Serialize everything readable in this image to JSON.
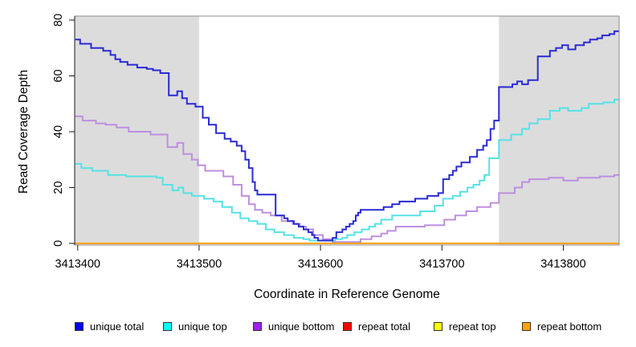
{
  "figure": {
    "xlabel": "Coordinate in Reference Genome",
    "ylabel": "Read Coverage Depth"
  },
  "chart_data": {
    "type": "line",
    "subtype": "step-after",
    "title": "",
    "xlabel": "Coordinate in Reference Genome",
    "ylabel": "Read Coverage Depth",
    "xlim": [
      3413397.5,
      3413846
    ],
    "ylim": [
      0,
      80
    ],
    "x_ticks": [
      3413400,
      3413500,
      3413600,
      3413700,
      3413800
    ],
    "y_ticks": [
      0,
      20,
      40,
      60,
      80
    ],
    "grid": false,
    "legend_position": "bottom",
    "background_color": "#FFFFFF",
    "shaded_band_color": "#DCDCDC",
    "shaded_regions": [
      {
        "x0": 3413397.5,
        "x1": 3413500
      },
      {
        "x0": 3413747,
        "x1": 3413846
      }
    ],
    "series": [
      {
        "name": "unique total",
        "color": "#2A2AD4",
        "legend_color": "#0000FF",
        "points": [
          [
            3413398,
            73
          ],
          [
            3413402,
            71.5
          ],
          [
            3413411,
            70
          ],
          [
            3413421,
            69
          ],
          [
            3413427,
            67.5
          ],
          [
            3413431,
            66
          ],
          [
            3413435,
            65
          ],
          [
            3413441,
            64
          ],
          [
            3413449,
            63
          ],
          [
            3413457,
            62.5
          ],
          [
            3413462,
            62
          ],
          [
            3413468,
            61
          ],
          [
            3413475,
            53
          ],
          [
            3413482,
            54.5
          ],
          [
            3413486,
            52
          ],
          [
            3413490,
            50
          ],
          [
            3413497,
            49
          ],
          [
            3413503,
            45
          ],
          [
            3413508,
            42.5
          ],
          [
            3413514,
            39.5
          ],
          [
            3413521,
            37.5
          ],
          [
            3413526,
            36.5
          ],
          [
            3413531,
            35
          ],
          [
            3413535,
            33
          ],
          [
            3413538,
            30
          ],
          [
            3413541,
            27
          ],
          [
            3413544,
            22
          ],
          [
            3413546,
            19
          ],
          [
            3413548,
            17.5
          ],
          [
            3413563,
            10
          ],
          [
            3413570,
            9
          ],
          [
            3413573,
            8
          ],
          [
            3413578,
            7
          ],
          [
            3413582,
            6
          ],
          [
            3413586,
            5
          ],
          [
            3413590,
            4
          ],
          [
            3413593,
            3
          ],
          [
            3413595,
            2
          ],
          [
            3413598,
            1
          ],
          [
            3413610,
            2
          ],
          [
            3413613,
            4
          ],
          [
            3413618,
            5
          ],
          [
            3413621,
            6
          ],
          [
            3413624,
            7
          ],
          [
            3413627,
            8
          ],
          [
            3413629,
            10
          ],
          [
            3413631,
            11
          ],
          [
            3413633,
            12
          ],
          [
            3413652,
            13
          ],
          [
            3413659,
            14
          ],
          [
            3413665,
            15
          ],
          [
            3413678,
            16
          ],
          [
            3413688,
            17
          ],
          [
            3413697,
            18
          ],
          [
            3413701,
            23
          ],
          [
            3413706,
            24.5
          ],
          [
            3413709,
            26
          ],
          [
            3413712,
            27.5
          ],
          [
            3413716,
            29
          ],
          [
            3413723,
            31
          ],
          [
            3413729,
            33.5
          ],
          [
            3413734,
            35
          ],
          [
            3413737,
            37
          ],
          [
            3413740,
            41
          ],
          [
            3413743,
            44
          ],
          [
            3413747,
            56
          ],
          [
            3413758,
            57
          ],
          [
            3413762,
            58
          ],
          [
            3413766,
            57
          ],
          [
            3413771,
            58.5
          ],
          [
            3413779,
            67
          ],
          [
            3413789,
            69
          ],
          [
            3413794,
            70
          ],
          [
            3413799,
            71
          ],
          [
            3413804,
            69.5
          ],
          [
            3413810,
            71
          ],
          [
            3413817,
            72
          ],
          [
            3413822,
            73
          ],
          [
            3413828,
            73.5
          ],
          [
            3413832,
            74.5
          ],
          [
            3413838,
            75
          ],
          [
            3413842,
            76
          ]
        ]
      },
      {
        "name": "unique top",
        "color": "#55E2E6",
        "legend_color": "#00FFFF",
        "points": [
          [
            3413398,
            28.5
          ],
          [
            3413403,
            27
          ],
          [
            3413412,
            26
          ],
          [
            3413425,
            24.5
          ],
          [
            3413440,
            24
          ],
          [
            3413465,
            23.5
          ],
          [
            3413470,
            21
          ],
          [
            3413478,
            19
          ],
          [
            3413483,
            20
          ],
          [
            3413487,
            18
          ],
          [
            3413494,
            17
          ],
          [
            3413504,
            16
          ],
          [
            3413512,
            15
          ],
          [
            3413519,
            13
          ],
          [
            3413527,
            11
          ],
          [
            3413534,
            9
          ],
          [
            3413541,
            8
          ],
          [
            3413548,
            7
          ],
          [
            3413555,
            5
          ],
          [
            3413562,
            4
          ],
          [
            3413570,
            3
          ],
          [
            3413578,
            2
          ],
          [
            3413586,
            1.5
          ],
          [
            3413591,
            1
          ],
          [
            3413612,
            1.5
          ],
          [
            3413618,
            2
          ],
          [
            3413622,
            3
          ],
          [
            3413628,
            4
          ],
          [
            3413634,
            5
          ],
          [
            3413640,
            6
          ],
          [
            3413645,
            7
          ],
          [
            3413650,
            8.5
          ],
          [
            3413659,
            10
          ],
          [
            3413682,
            11.5
          ],
          [
            3413694,
            13.5
          ],
          [
            3413701,
            16
          ],
          [
            3413709,
            17
          ],
          [
            3413715,
            18.5
          ],
          [
            3413721,
            20
          ],
          [
            3413726,
            21
          ],
          [
            3413731,
            22.5
          ],
          [
            3413735,
            24.5
          ],
          [
            3413739,
            30.5
          ],
          [
            3413747,
            37
          ],
          [
            3413757,
            39
          ],
          [
            3413766,
            41
          ],
          [
            3413772,
            43
          ],
          [
            3413779,
            44.5
          ],
          [
            3413789,
            47.5
          ],
          [
            3413797,
            48.5
          ],
          [
            3413804,
            47.5
          ],
          [
            3413815,
            48.5
          ],
          [
            3413821,
            50
          ],
          [
            3413833,
            50.5
          ],
          [
            3413842,
            51.5
          ]
        ]
      },
      {
        "name": "unique bottom",
        "color": "#BD8FE0",
        "legend_color": "#A020F0",
        "points": [
          [
            3413398,
            45.5
          ],
          [
            3413404,
            44
          ],
          [
            3413415,
            43
          ],
          [
            3413423,
            42.5
          ],
          [
            3413432,
            41.5
          ],
          [
            3413442,
            40
          ],
          [
            3413460,
            39
          ],
          [
            3413474,
            34.5
          ],
          [
            3413482,
            36
          ],
          [
            3413487,
            32
          ],
          [
            3413494,
            30
          ],
          [
            3413499,
            28
          ],
          [
            3413505,
            26
          ],
          [
            3413520,
            24
          ],
          [
            3413528,
            21
          ],
          [
            3413535,
            17
          ],
          [
            3413541,
            14
          ],
          [
            3413546,
            12
          ],
          [
            3413552,
            11
          ],
          [
            3413559,
            10
          ],
          [
            3413568,
            8
          ],
          [
            3413577,
            7
          ],
          [
            3413583,
            6
          ],
          [
            3413588,
            5
          ],
          [
            3413594,
            3
          ],
          [
            3413602,
            1.5
          ],
          [
            3413610,
            0.5
          ],
          [
            3413633,
            1.5
          ],
          [
            3413642,
            2.5
          ],
          [
            3413650,
            3.5
          ],
          [
            3413655,
            4.5
          ],
          [
            3413662,
            6
          ],
          [
            3413686,
            6.5
          ],
          [
            3413702,
            8.5
          ],
          [
            3413711,
            10
          ],
          [
            3413720,
            11.5
          ],
          [
            3413729,
            13
          ],
          [
            3413740,
            14.5
          ],
          [
            3413747,
            18
          ],
          [
            3413760,
            20
          ],
          [
            3413766,
            22
          ],
          [
            3413772,
            23
          ],
          [
            3413788,
            23.5
          ],
          [
            3413800,
            22.5
          ],
          [
            3413812,
            23.5
          ],
          [
            3413830,
            24
          ],
          [
            3413842,
            24.5
          ]
        ]
      },
      {
        "name": "repeat total",
        "color": "#FF0000",
        "legend_color": "#FF0000",
        "points": [
          [
            3413398,
            0
          ]
        ]
      },
      {
        "name": "repeat top",
        "color": "#FFFF00",
        "legend_color": "#FFFF00",
        "points": [
          [
            3413398,
            0
          ]
        ]
      },
      {
        "name": "repeat bottom",
        "color": "#FFA500",
        "legend_color": "#FFA500",
        "points": [
          [
            3413398,
            0
          ]
        ]
      }
    ]
  }
}
